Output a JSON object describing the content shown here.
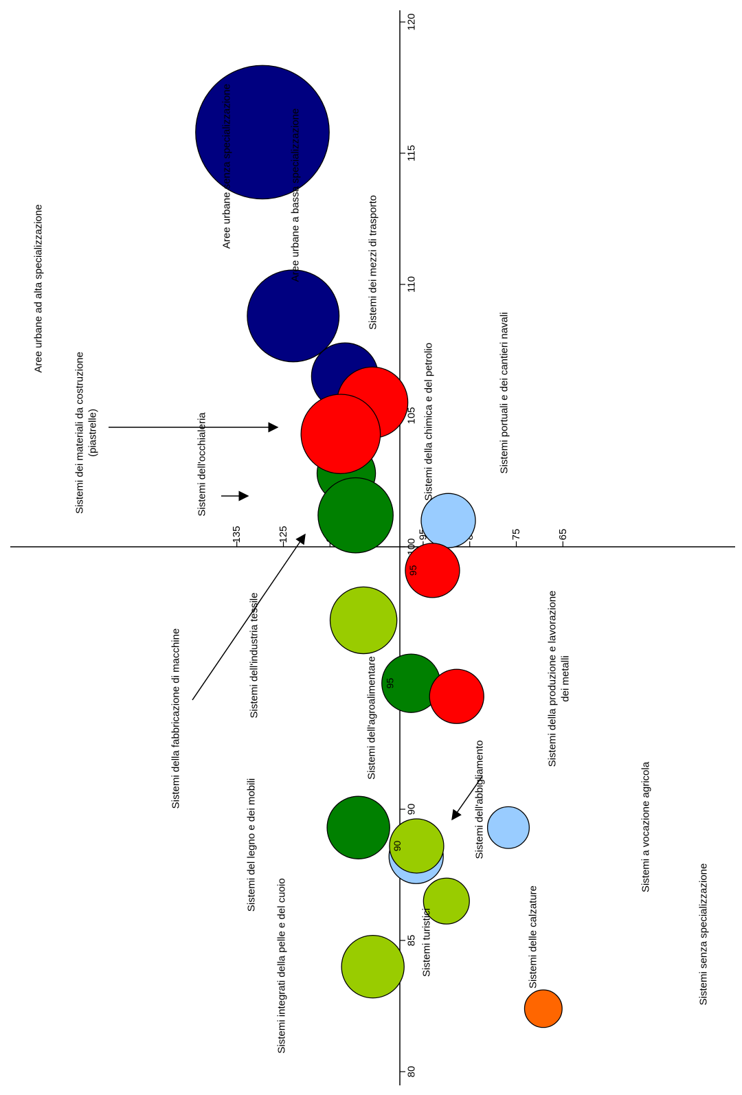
{
  "chart_data": {
    "type": "bubble",
    "orientation": "rotated-90-ccw",
    "x_axis": {
      "ticks": [
        "80",
        "85",
        "90",
        "95",
        "100",
        "105",
        "110",
        "115",
        "120"
      ],
      "range": [
        80,
        120
      ]
    },
    "y_axis": {
      "ticks": [
        "65",
        "75",
        "85",
        "95",
        "105",
        "115",
        "125",
        "135"
      ],
      "range": [
        65,
        140
      ]
    },
    "colors": {
      "urban": "#000080",
      "made_in_italy_red": "#ff0000",
      "made_in_italy_dark_green": "#008000",
      "made_in_italy_light_green": "#99cc00",
      "non_manufacturing_light_blue": "#99ccff",
      "no_specialization_orange": "#ff6600"
    },
    "bubbles": [
      {
        "label": "Aree urbane ad alta specializzazione",
        "x": 115.8,
        "y": 129.5,
        "size": 1.6,
        "color": "#000080"
      },
      {
        "label": "Aree urbane senza specializzazione",
        "x": 108.8,
        "y": 122.9,
        "size": 1.1,
        "color": "#000080"
      },
      {
        "label": "Aree urbane a bassa specializzazione",
        "x": 106.5,
        "y": 111.8,
        "size": 0.8,
        "color": "#000080"
      },
      {
        "label": "Sistemi dell'occhialeria",
        "x": 102.8,
        "y": 111.5,
        "size": 0.7,
        "color": "#008000"
      },
      {
        "label": "Sistemi dei mezzi di trasporto",
        "x": 105.5,
        "y": 105.9,
        "size": 0.85,
        "color": "#ff0000"
      },
      {
        "label": "Sistemi dei materiali da costruzione (piastrelle)",
        "x": 104.3,
        "y": 112.7,
        "size": 0.95,
        "color": "#ff0000"
      },
      {
        "label": "Sistemi della fabbricazione di macchine",
        "x": 101.2,
        "y": 109.5,
        "size": 0.9,
        "color": "#008000"
      },
      {
        "label": "Sistemi portuali e dei cantieri navali",
        "x": 101.0,
        "y": 89.6,
        "size": 0.65,
        "color": "#99ccff"
      },
      {
        "label": "Sistemi della chimica e del petrolio",
        "x": 99.1,
        "y": 93.0,
        "size": 0.65,
        "color": "#ff0000",
        "value_label": "95"
      },
      {
        "label": "Sistemi dell'industria tessile",
        "x": 97.2,
        "y": 107.8,
        "size": 0.8,
        "color": "#99cc00"
      },
      {
        "label": "Sistemi dell'agroalimentare",
        "x": 94.8,
        "y": 97.6,
        "size": 0.7,
        "color": "#008000",
        "value_label": "95"
      },
      {
        "label": "Sistemi della produzione e lavorazione dei metalli",
        "x": 94.3,
        "y": 87.8,
        "size": 0.65,
        "color": "#ff0000"
      },
      {
        "label": "Sistemi del legno e dei mobili",
        "x": 89.3,
        "y": 108.9,
        "size": 0.75,
        "color": "#008000"
      },
      {
        "label": "Sistemi a vocazione agricola",
        "x": 89.3,
        "y": 76.7,
        "size": 0.5,
        "color": "#99ccff"
      },
      {
        "label": "Sistemi turistici",
        "x": 88.2,
        "y": 96.5,
        "size": 0.65,
        "color": "#99ccff"
      },
      {
        "label": "Sistemi dell'abbigliamento",
        "x": 88.6,
        "y": 96.4,
        "size": 0.65,
        "color": "#99cc00",
        "value_label": "90"
      },
      {
        "label": "Sistemi delle calzature",
        "x": 86.5,
        "y": 90.0,
        "size": 0.55,
        "color": "#99cc00"
      },
      {
        "label": "Sistemi integrati della pelle e del cuoio",
        "x": 84.0,
        "y": 105.8,
        "size": 0.75,
        "color": "#99cc00"
      },
      {
        "label": "Sistemi senza specializzazione",
        "x": 82.4,
        "y": 69.2,
        "size": 0.45,
        "color": "#ff6600"
      }
    ]
  }
}
